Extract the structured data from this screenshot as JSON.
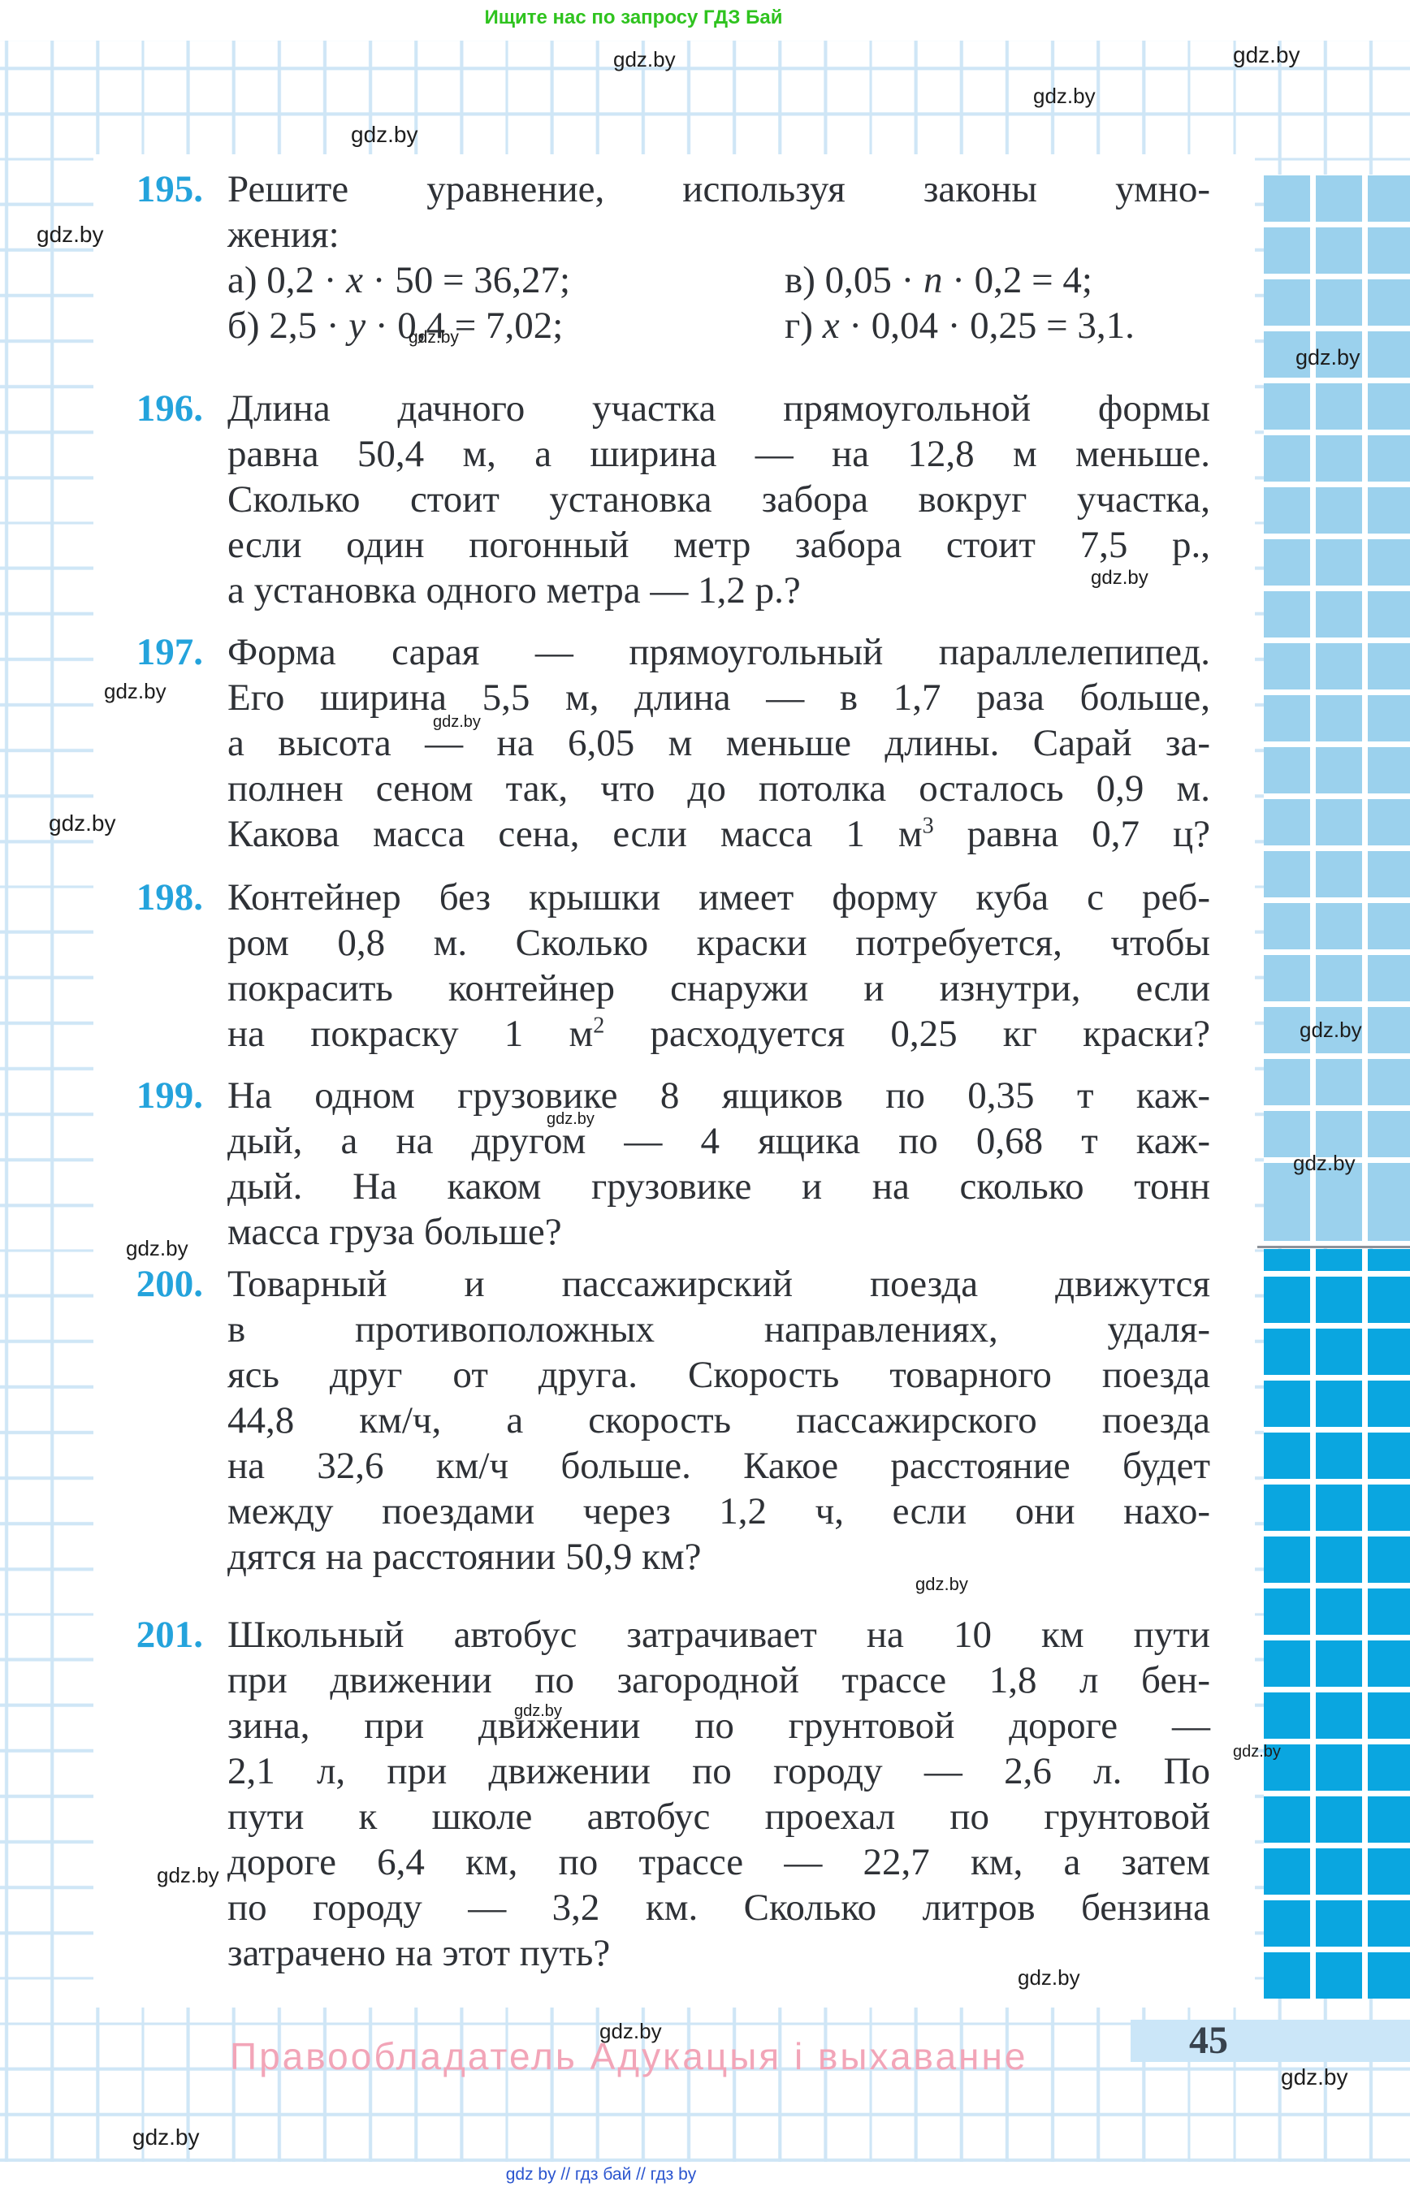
{
  "header": {
    "promo": "Ищите нас по запросу ГДЗ Бай",
    "promo_color": "#2fc31f"
  },
  "watermark": {
    "text": "gdz.by",
    "positions": [
      [
        1518,
        52,
        28
      ],
      [
        755,
        58,
        26
      ],
      [
        1272,
        103,
        26
      ],
      [
        432,
        150,
        28
      ],
      [
        45,
        273,
        28
      ],
      [
        503,
        404,
        21
      ],
      [
        1343,
        698,
        24
      ],
      [
        1595,
        425,
        27
      ],
      [
        128,
        836,
        26
      ],
      [
        533,
        878,
        20
      ],
      [
        60,
        998,
        28
      ],
      [
        1600,
        1253,
        26
      ],
      [
        1592,
        1417,
        26
      ],
      [
        155,
        1522,
        26
      ],
      [
        673,
        1367,
        20
      ],
      [
        1127,
        1938,
        22
      ],
      [
        633,
        2096,
        20
      ],
      [
        1518,
        2146,
        20
      ],
      [
        193,
        2294,
        26
      ],
      [
        1253,
        2420,
        26
      ],
      [
        738,
        2486,
        26
      ],
      [
        1577,
        2542,
        28
      ],
      [
        163,
        2616,
        28
      ]
    ]
  },
  "problems": [
    {
      "number": "195.",
      "lines": [
        {
          "type": "just",
          "seg": [
            {
              "t": "Решите уравнение, используя законы умно-"
            }
          ]
        },
        {
          "type": "left",
          "seg": [
            {
              "t": "жения:"
            }
          ]
        },
        {
          "type": "cols",
          "left": [
            {
              "t": "а) 0,2 · "
            },
            {
              "t": "x",
              "i": true
            },
            {
              "t": " · 50 = 36,27;"
            }
          ],
          "right": [
            {
              "t": "в) 0,05 · "
            },
            {
              "t": "n",
              "i": true
            },
            {
              "t": " · 0,2 = 4;"
            }
          ]
        },
        {
          "type": "cols",
          "left": [
            {
              "t": "б) 2,5 · "
            },
            {
              "t": "y",
              "i": true
            },
            {
              "t": " · 0,4 = 7,02;"
            }
          ],
          "right": [
            {
              "t": "г) "
            },
            {
              "t": "x",
              "i": true
            },
            {
              "t": " · 0,04 · 0,25 = 3,1."
            }
          ]
        }
      ]
    },
    {
      "number": "196.",
      "lines": [
        {
          "type": "just",
          "seg": [
            {
              "t": "Длина дачного участка прямоугольной формы"
            }
          ]
        },
        {
          "type": "just",
          "seg": [
            {
              "t": "равна 50,4 м, а ширина — на 12,8 м меньше."
            }
          ]
        },
        {
          "type": "just",
          "seg": [
            {
              "t": "Сколько стоит установка забора вокруг участка,"
            }
          ]
        },
        {
          "type": "just",
          "seg": [
            {
              "t": "если один погонный метр забора стоит 7,5 р.,"
            }
          ]
        },
        {
          "type": "left",
          "seg": [
            {
              "t": "а установка одного метра — 1,2 р.?"
            }
          ]
        }
      ]
    },
    {
      "number": "197.",
      "lines": [
        {
          "type": "just",
          "seg": [
            {
              "t": "Форма сарая — прямоугольный параллелепипед."
            }
          ]
        },
        {
          "type": "just",
          "seg": [
            {
              "t": "Его ширина 5,5 м, длина — в 1,7 раза больше,"
            }
          ]
        },
        {
          "type": "just",
          "seg": [
            {
              "t": "а высота — на 6,05 м меньше длины. Сарай за-"
            }
          ]
        },
        {
          "type": "just",
          "seg": [
            {
              "t": "полнен сеном так, что до потолка осталось 0,9 м."
            }
          ]
        },
        {
          "type": "just",
          "seg": [
            {
              "t": "Какова масса сена, если масса 1 м"
            },
            {
              "t": "3",
              "sup": true
            },
            {
              "t": " равна 0,7 ц?"
            }
          ]
        }
      ]
    },
    {
      "number": "198.",
      "lines": [
        {
          "type": "just",
          "seg": [
            {
              "t": "Контейнер без крышки имеет форму куба с реб-"
            }
          ]
        },
        {
          "type": "just",
          "seg": [
            {
              "t": "ром 0,8 м. Сколько краски потребуется, чтобы"
            }
          ]
        },
        {
          "type": "just",
          "seg": [
            {
              "t": "покрасить контейнер снаружи и изнутри, если"
            }
          ]
        },
        {
          "type": "just",
          "seg": [
            {
              "t": "на покраску 1 м"
            },
            {
              "t": "2",
              "sup": true
            },
            {
              "t": " расходуется 0,25 кг краски?"
            }
          ]
        }
      ]
    },
    {
      "number": "199.",
      "lines": [
        {
          "type": "just",
          "seg": [
            {
              "t": "На одном грузовике 8 ящиков по 0,35 т каж-"
            }
          ]
        },
        {
          "type": "just",
          "seg": [
            {
              "t": "дый, а на другом — 4 ящика по 0,68 т каж-"
            }
          ]
        },
        {
          "type": "just",
          "seg": [
            {
              "t": "дый. На каком грузовике и на сколько тонн"
            }
          ]
        },
        {
          "type": "left",
          "seg": [
            {
              "t": "масса груза больше?"
            }
          ]
        }
      ]
    },
    {
      "number": "200.",
      "lines": [
        {
          "type": "just",
          "seg": [
            {
              "t": "Товарный и пассажирский поезда движутся"
            }
          ]
        },
        {
          "type": "just",
          "seg": [
            {
              "t": "в противоположных направлениях, удаля-"
            }
          ]
        },
        {
          "type": "just",
          "seg": [
            {
              "t": "ясь друг от друга. Скорость товарного поезда"
            }
          ]
        },
        {
          "type": "just",
          "seg": [
            {
              "t": "44,8 км/ч, а скорость пассажирского поезда"
            }
          ]
        },
        {
          "type": "just",
          "seg": [
            {
              "t": "на 32,6 км/ч больше. Какое расстояние будет"
            }
          ]
        },
        {
          "type": "just",
          "seg": [
            {
              "t": "между поездами через 1,2 ч, если они нахо-"
            }
          ]
        },
        {
          "type": "left",
          "seg": [
            {
              "t": "дятся на расстоянии 50,9 км?"
            }
          ]
        }
      ]
    },
    {
      "number": "201.",
      "lines": [
        {
          "type": "just",
          "seg": [
            {
              "t": "Школьный автобус затрачивает на 10 км пути"
            }
          ]
        },
        {
          "type": "just",
          "seg": [
            {
              "t": "при движении по загородной трассе 1,8 л бен-"
            }
          ]
        },
        {
          "type": "just",
          "seg": [
            {
              "t": "зина, при движении по грунтовой дороге —"
            }
          ]
        },
        {
          "type": "just",
          "seg": [
            {
              "t": "2,1 л, при движении по городу — 2,6 л. По"
            }
          ]
        },
        {
          "type": "just",
          "seg": [
            {
              "t": "пути к школе автобус проехал по грунтовой"
            }
          ]
        },
        {
          "type": "just",
          "seg": [
            {
              "t": "дороге 6,4 км, по трассе — 22,7 км, а затем"
            }
          ]
        },
        {
          "type": "just",
          "seg": [
            {
              "t": "по городу — 3,2 км. Сколько литров бензина"
            }
          ]
        },
        {
          "type": "left",
          "seg": [
            {
              "t": "затрачено на этот путь?"
            }
          ]
        }
      ]
    }
  ],
  "footer": {
    "copyright": "Правообладатель Адукацыя і выхаванне",
    "copyright_color": "#f2a5b8",
    "links": "gdz by // гдз бай // гдз by",
    "links_color": "#2b55cf",
    "page_number": "45"
  },
  "colors": {
    "accent_number": "#24a3dc",
    "squares_light": "#9bd1ed",
    "squares_dark": "#0aa6e0",
    "page_band": "#cbe6f8",
    "grid_line": "#cfe6f6",
    "body_text": "#2e3136"
  }
}
